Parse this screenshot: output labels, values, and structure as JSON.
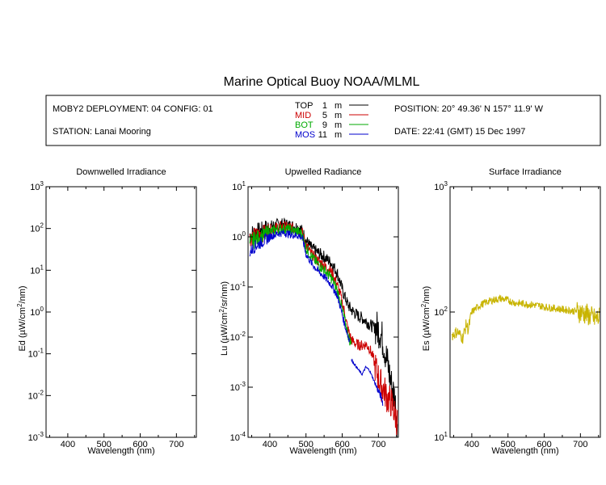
{
  "title": "Marine Optical Buoy NOAA/MLML",
  "info": {
    "deployment": "MOBY2 DEPLOYMENT: 04 CONFIG: 01",
    "station": "STATION: Lanai Mooring",
    "position": "POSITION: 20° 49.36' N   157° 11.9' W",
    "date": "DATE: 22:41 (GMT) 15 Dec 1997",
    "legend": [
      {
        "name": "TOP",
        "depth": "1",
        "unit": "m",
        "color": "#000000"
      },
      {
        "name": "MID",
        "depth": "5",
        "unit": "m",
        "color": "#cc0000"
      },
      {
        "name": "BOT",
        "depth": "9",
        "unit": "m",
        "color": "#00aa00"
      },
      {
        "name": "MOS",
        "depth": "11",
        "unit": "m",
        "color": "#0000cc"
      }
    ]
  },
  "chart_data": [
    {
      "type": "line",
      "title": "Downwelled Irradiance",
      "xlabel": "Wavelength (nm)",
      "ylabel_main": "Ed  (µW/cm",
      "ylabel_sup": "2",
      "ylabel_end": "/nm)",
      "xlim": [
        340,
        755
      ],
      "xticks": [
        "400",
        "500",
        "600",
        "700"
      ],
      "yscale": "log",
      "ylim_exp": [
        -3,
        3
      ],
      "yticks": [
        {
          "base": "10",
          "exp": "-3"
        },
        {
          "base": "10",
          "exp": "-2"
        },
        {
          "base": "10",
          "exp": "-1"
        },
        {
          "base": "10",
          "exp": "0"
        },
        {
          "base": "10",
          "exp": "1"
        },
        {
          "base": "10",
          "exp": "2"
        },
        {
          "base": "10",
          "exp": "3"
        }
      ],
      "series": []
    },
    {
      "type": "line",
      "title": "Upwelled Radiance",
      "xlabel": "Wavelength (nm)",
      "ylabel_main": "Lu  (µW/cm",
      "ylabel_sup": "2",
      "ylabel_end": "/sr/nm)",
      "xlim": [
        340,
        755
      ],
      "xticks": [
        "400",
        "500",
        "600",
        "700"
      ],
      "yscale": "log",
      "ylim_exp": [
        -4,
        1
      ],
      "yticks": [
        {
          "base": "10",
          "exp": "-4"
        },
        {
          "base": "10",
          "exp": "-3"
        },
        {
          "base": "10",
          "exp": "-2"
        },
        {
          "base": "10",
          "exp": "-1"
        },
        {
          "base": "10",
          "exp": "0"
        },
        {
          "base": "10",
          "exp": "1"
        }
      ],
      "series": [
        {
          "color": "#000000",
          "noise": 0.25,
          "x": [
            345,
            360,
            380,
            400,
            420,
            440,
            460,
            480,
            490,
            500,
            515,
            530,
            550,
            570,
            585,
            595,
            605,
            615,
            625,
            635,
            645,
            655,
            665,
            675,
            685,
            695,
            705,
            715,
            725,
            735,
            745,
            752
          ],
          "y": [
            1.1,
            1.2,
            1.3,
            1.6,
            1.75,
            1.8,
            1.65,
            1.55,
            1.3,
            0.85,
            0.6,
            0.5,
            0.4,
            0.3,
            0.2,
            0.12,
            0.07,
            0.045,
            0.035,
            0.03,
            0.026,
            0.024,
            0.021,
            0.018,
            0.016,
            0.015,
            0.013,
            0.007,
            0.003,
            0.0012,
            0.0006,
            0.0002
          ]
        },
        {
          "color": "#cc0000",
          "noise": 0.22,
          "x": [
            345,
            360,
            380,
            400,
            420,
            440,
            460,
            480,
            490,
            500,
            515,
            530,
            550,
            570,
            585,
            595,
            605,
            615,
            625,
            635,
            645,
            655,
            665,
            675,
            685,
            695,
            705,
            715,
            725,
            735,
            745,
            752
          ],
          "y": [
            0.95,
            1.05,
            1.15,
            1.4,
            1.55,
            1.6,
            1.5,
            1.4,
            1.2,
            0.7,
            0.45,
            0.35,
            0.27,
            0.2,
            0.12,
            0.07,
            0.035,
            0.015,
            0.009,
            0.0075,
            0.007,
            0.0068,
            0.0072,
            0.006,
            0.004,
            0.002,
            0.0012,
            0.0009,
            0.0006,
            0.0005,
            0.0003,
            0.0002
          ]
        },
        {
          "color": "#00aa00",
          "noise": 0.22,
          "x": [
            345,
            360,
            380,
            400,
            420,
            440,
            460,
            480,
            490,
            500,
            515,
            530,
            550,
            570,
            585,
            595,
            605,
            615,
            625
          ],
          "y": [
            0.75,
            0.9,
            1.0,
            1.25,
            1.4,
            1.45,
            1.35,
            1.25,
            1.1,
            0.6,
            0.4,
            0.3,
            0.22,
            0.15,
            0.09,
            0.05,
            0.025,
            0.012,
            0.007
          ]
        },
        {
          "color": "#0000cc",
          "noise": 0.15,
          "x": [
            345,
            360,
            380,
            400,
            420,
            440,
            460,
            480,
            490,
            500,
            515,
            530,
            550,
            570,
            585,
            595,
            605,
            615,
            620
          ],
          "y": [
            0.5,
            0.65,
            0.8,
            1.0,
            1.15,
            1.2,
            1.1,
            1.05,
            0.95,
            0.45,
            0.3,
            0.22,
            0.16,
            0.11,
            0.07,
            0.04,
            0.02,
            0.011,
            0.009
          ]
        },
        {
          "color": "#0000cc",
          "noise": 0.05,
          "x": [
            625,
            635,
            645,
            655,
            665,
            675,
            685,
            695,
            705,
            712
          ],
          "y": [
            0.0035,
            0.0028,
            0.0022,
            0.0018,
            0.0025,
            0.0022,
            0.0015,
            0.001,
            0.0007,
            0.0005
          ]
        }
      ]
    },
    {
      "type": "line",
      "title": "Surface Irradiance",
      "xlabel": "Wavelength (nm)",
      "ylabel_main": "Es  (µW/cm",
      "ylabel_sup": "2",
      "ylabel_end": "/nm)",
      "xlim": [
        340,
        755
      ],
      "xticks": [
        "400",
        "500",
        "600",
        "700"
      ],
      "yscale": "log",
      "ylim_exp": [
        1,
        3
      ],
      "yticks": [
        {
          "base": "10",
          "exp": "1"
        },
        {
          "base": "10",
          "exp": "2"
        },
        {
          "base": "10",
          "exp": "3"
        }
      ],
      "series": [
        {
          "color": "#c8b400",
          "noise": 0.06,
          "x": [
            345,
            360,
            375,
            385,
            390,
            400,
            420,
            440,
            460,
            480,
            500,
            520,
            540,
            560,
            580,
            600,
            620,
            640,
            660,
            680,
            700,
            720,
            740,
            752
          ],
          "y": [
            65,
            70,
            62,
            80,
            72,
            100,
            112,
            120,
            125,
            128,
            124,
            118,
            117,
            115,
            113,
            110,
            108,
            106,
            104,
            102,
            100,
            95,
            88,
            90
          ]
        }
      ]
    }
  ]
}
